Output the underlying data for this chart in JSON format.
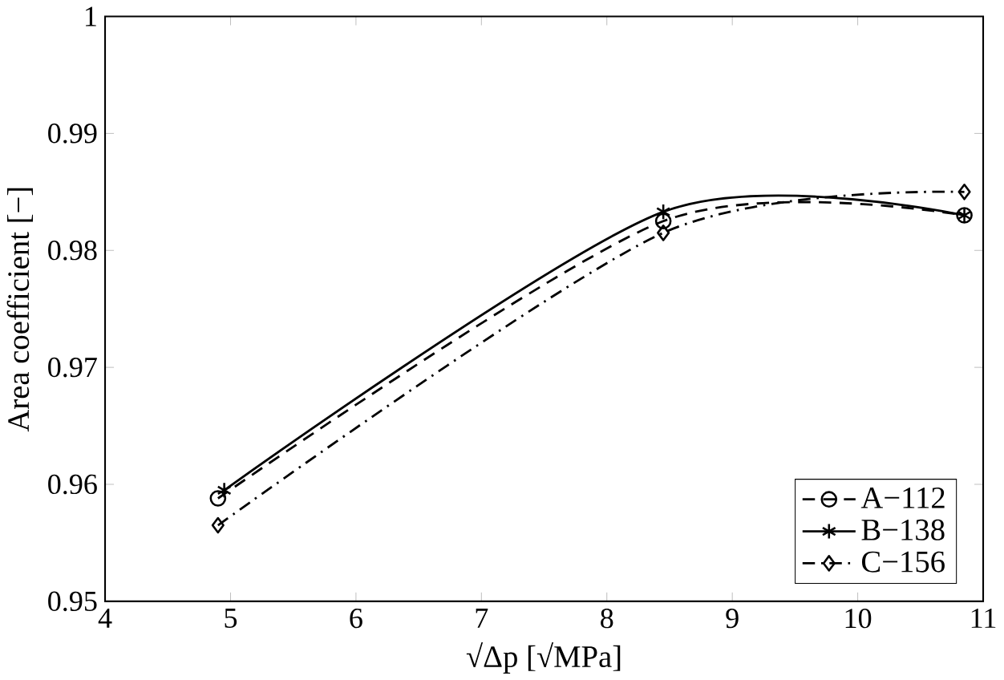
{
  "chart_data": {
    "type": "line",
    "xlabel": "√Δp  [√MPa]",
    "ylabel": "Area coefficient [−]",
    "xlim": [
      4,
      11
    ],
    "ylim": [
      0.95,
      1
    ],
    "xticks": [
      4,
      5,
      6,
      7,
      8,
      9,
      10,
      11
    ],
    "yticks": [
      0.95,
      0.96,
      0.97,
      0.98,
      0.99,
      1
    ],
    "grid": false,
    "legend": "bottom right",
    "series": [
      {
        "name": "A−112",
        "color": "#000000",
        "marker": "circle",
        "line_style": "dashed",
        "x": [
          4.9,
          8.45,
          10.85
        ],
        "values": [
          0.9588,
          0.9825,
          0.983
        ]
      },
      {
        "name": "B−138",
        "color": "#000000",
        "marker": "cross",
        "line_style": "solid",
        "x": [
          4.95,
          8.45,
          10.85
        ],
        "values": [
          0.9595,
          0.9833,
          0.983
        ]
      },
      {
        "name": "C−156",
        "color": "#000000",
        "marker": "diamond",
        "line_style": "dashdotted",
        "x": [
          4.9,
          8.45,
          10.85
        ],
        "values": [
          0.9565,
          0.9815,
          0.985
        ]
      }
    ]
  }
}
